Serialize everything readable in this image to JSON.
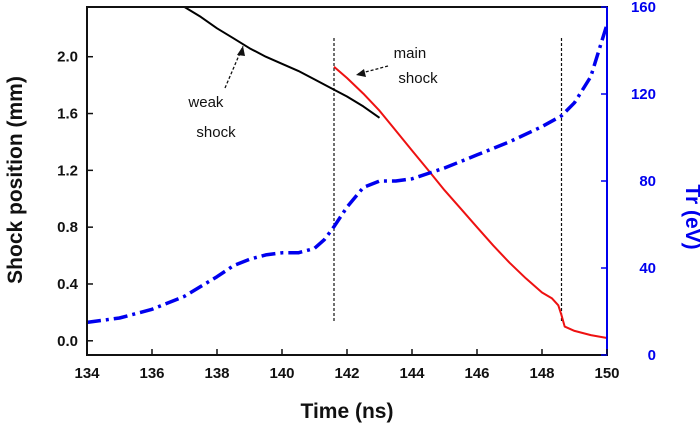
{
  "chart_data": {
    "type": "line",
    "xlabel": "Time (ns)",
    "ylabel_left": "Shock position (mm)",
    "ylabel_right": "Tr (eV)",
    "xlim": [
      134,
      150
    ],
    "ylim_left": [
      -0.1,
      2.35
    ],
    "ylim_right": [
      0,
      160
    ],
    "xticks": [
      134,
      136,
      138,
      140,
      142,
      144,
      146,
      148,
      150
    ],
    "yticks_left": [
      0.0,
      0.4,
      0.8,
      1.2,
      1.6,
      2.0
    ],
    "yticks_right": [
      0,
      40,
      80,
      120,
      160
    ],
    "grid": false,
    "colors": {
      "weak_shock": "#000000",
      "main_shock": "#ee1111",
      "tr": "#0000ee",
      "axis_left": "#111111",
      "axis_right": "#0000ee"
    },
    "series": [
      {
        "axis": "left",
        "x": [
          137.0,
          137.5,
          138.0,
          138.5,
          139.0,
          139.5,
          140.0,
          140.5,
          141.0,
          141.5,
          142.0,
          142.5,
          143.0
        ],
        "y": [
          2.35,
          2.28,
          2.2,
          2.13,
          2.06,
          2.0,
          1.95,
          1.9,
          1.84,
          1.78,
          1.72,
          1.65,
          1.57
        ]
      },
      {
        "axis": "left",
        "x": [
          141.6,
          142.0,
          142.5,
          143.0,
          143.5,
          144.0,
          144.5,
          145.0,
          145.5,
          146.0,
          146.5,
          147.0,
          147.5,
          148.0,
          148.3,
          148.5,
          148.6,
          148.7,
          149.0,
          149.5,
          150.0
        ],
        "y": [
          1.93,
          1.85,
          1.74,
          1.62,
          1.48,
          1.34,
          1.2,
          1.06,
          0.93,
          0.8,
          0.67,
          0.55,
          0.44,
          0.34,
          0.3,
          0.25,
          0.18,
          0.1,
          0.07,
          0.04,
          0.02
        ]
      },
      {
        "axis": "right",
        "x": [
          134.0,
          135.0,
          136.0,
          137.0,
          138.0,
          138.5,
          139.0,
          139.5,
          140.0,
          140.5,
          141.0,
          141.3,
          141.6,
          142.0,
          142.5,
          143.0,
          143.5,
          144.0,
          145.0,
          146.0,
          147.0,
          148.0,
          148.6,
          149.0,
          149.5,
          150.0
        ],
        "y": [
          15,
          17,
          21,
          27,
          36,
          41,
          44,
          46,
          47,
          47,
          49,
          53,
          59,
          68,
          77,
          80,
          80,
          81,
          86,
          92,
          98,
          105,
          110,
          116,
          128,
          152
        ]
      }
    ],
    "vlines": [
      141.6,
      148.6
    ],
    "annotations": [
      {
        "lines": [
          "weak",
          "shock"
        ]
      },
      {
        "lines": [
          "main",
          "shock"
        ]
      }
    ]
  }
}
